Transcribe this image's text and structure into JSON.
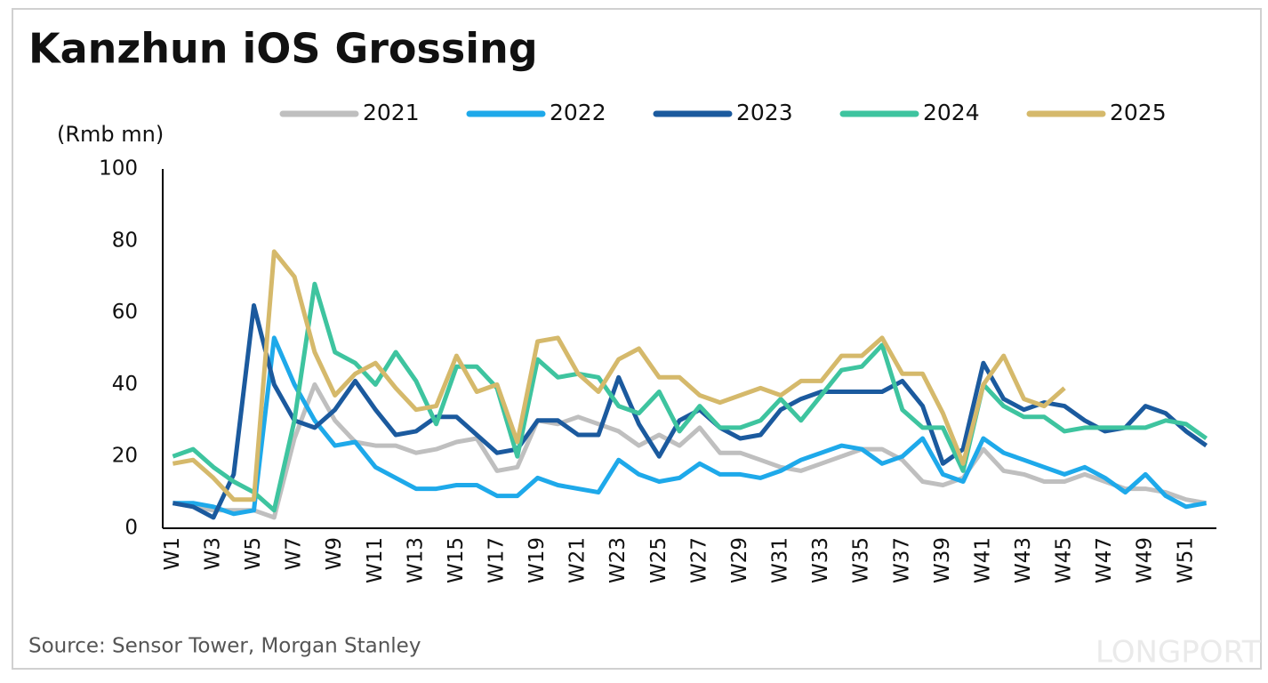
{
  "chart_data": {
    "type": "line",
    "title": "Kanzhun iOS Grossing",
    "y_axis_label": "(Rmb mn)",
    "source": "Source: Sensor Tower, Morgan Stanley",
    "watermark": "LONGPORT",
    "categories": [
      "W1",
      null,
      "W3",
      null,
      "W5",
      null,
      "W7",
      null,
      "W9",
      null,
      "W11",
      null,
      "W13",
      null,
      "W15",
      null,
      "W17",
      null,
      "W19",
      null,
      "W21",
      null,
      "W23",
      null,
      "W25",
      null,
      "W27",
      null,
      "W29",
      null,
      "W31",
      null,
      "W33",
      null,
      "W35",
      null,
      "W37",
      null,
      "W39",
      null,
      "W41",
      null,
      "W43",
      null,
      "W45",
      null,
      "W47",
      null,
      "W49",
      null,
      "W51",
      null
    ],
    "series": [
      {
        "name": "2021",
        "color": "#bfbfbf",
        "values": [
          7,
          6,
          5,
          5,
          5,
          3,
          25,
          40,
          30,
          24,
          23,
          23,
          21,
          22,
          24,
          25,
          16,
          17,
          30,
          29,
          31,
          29,
          27,
          23,
          26,
          23,
          28,
          21,
          21,
          19,
          17,
          16,
          18,
          20,
          22,
          22,
          19,
          13,
          12,
          14,
          22,
          16,
          15,
          13,
          13,
          15,
          13,
          11,
          11,
          10,
          8,
          7
        ]
      },
      {
        "name": "2022",
        "color": "#1ea9ea",
        "values": [
          7,
          7,
          6,
          4,
          5,
          53,
          40,
          30,
          23,
          24,
          17,
          14,
          11,
          11,
          12,
          12,
          9,
          9,
          14,
          12,
          11,
          10,
          19,
          15,
          13,
          14,
          18,
          15,
          15,
          14,
          16,
          19,
          21,
          23,
          22,
          18,
          20,
          25,
          15,
          13,
          25,
          21,
          19,
          17,
          15,
          17,
          14,
          10,
          15,
          9,
          6,
          7
        ]
      },
      {
        "name": "2023",
        "color": "#1b5a9e",
        "values": [
          7,
          6,
          3,
          15,
          62,
          40,
          30,
          28,
          33,
          41,
          33,
          26,
          27,
          31,
          31,
          26,
          21,
          22,
          30,
          30,
          26,
          26,
          42,
          29,
          20,
          30,
          33,
          28,
          25,
          26,
          33,
          36,
          38,
          38,
          38,
          38,
          41,
          34,
          18,
          22,
          46,
          36,
          33,
          35,
          34,
          30,
          27,
          28,
          34,
          32,
          27,
          23
        ]
      },
      {
        "name": "2024",
        "color": "#3ec49f",
        "values": [
          20,
          22,
          17,
          13,
          10,
          5,
          30,
          68,
          49,
          46,
          40,
          49,
          41,
          29,
          45,
          45,
          39,
          20,
          47,
          42,
          43,
          42,
          34,
          32,
          38,
          27,
          34,
          28,
          28,
          30,
          36,
          30,
          37,
          44,
          45,
          51,
          33,
          28,
          28,
          16,
          40,
          34,
          31,
          31,
          27,
          28,
          28,
          28,
          28,
          30,
          29,
          25
        ]
      },
      {
        "name": "2025",
        "color": "#d5b96b",
        "values": [
          18,
          19,
          14,
          8,
          8,
          77,
          70,
          49,
          37,
          43,
          46,
          39,
          33,
          34,
          48,
          38,
          40,
          24,
          52,
          53,
          43,
          38,
          47,
          50,
          42,
          42,
          37,
          35,
          37,
          39,
          37,
          41,
          41,
          48,
          48,
          53,
          43,
          43,
          32,
          18,
          40,
          48,
          36,
          34,
          39,
          null,
          null,
          null,
          null,
          null,
          null,
          null
        ]
      }
    ],
    "ylim": [
      0,
      100
    ],
    "yticks": [
      0,
      20,
      40,
      60,
      80,
      100
    ],
    "grid": false
  }
}
